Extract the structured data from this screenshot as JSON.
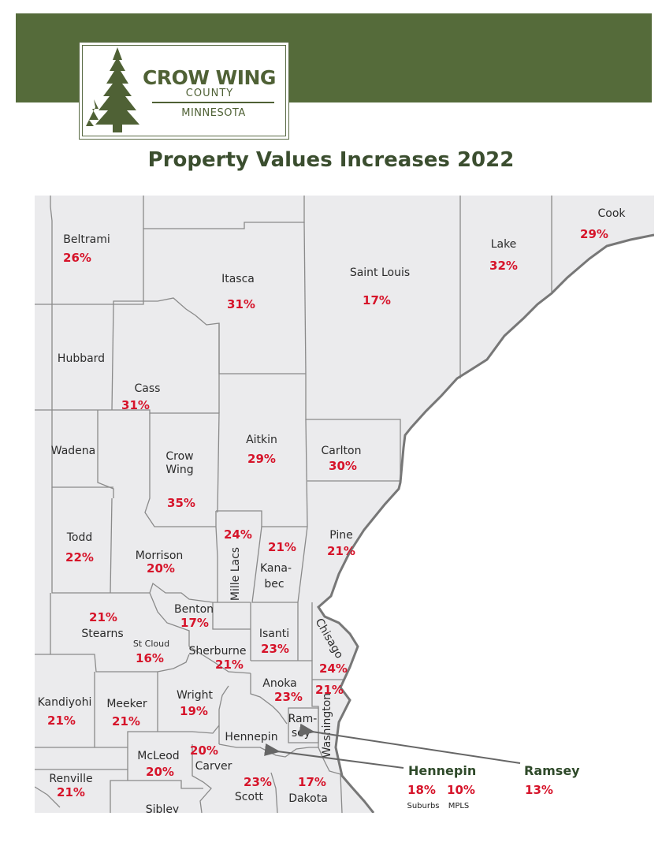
{
  "header": {
    "logo": {
      "line1": "CROW WING",
      "line2": "COUNTY",
      "line3": "MINNESOTA"
    },
    "title": "Property Values Increases 2022"
  },
  "colors": {
    "banner": "#556b3a",
    "map_fill": "#ebebed",
    "water": "#ffffff",
    "border": "#8a8a8a",
    "shore": "#777777",
    "percent": "#d6142a"
  },
  "counties": [
    {
      "id": "beltrami",
      "name": "Beltrami",
      "pct": "26%"
    },
    {
      "id": "itasca",
      "name": "Itasca",
      "pct": "31%"
    },
    {
      "id": "saint-louis",
      "name": "Saint Louis",
      "pct": "17%"
    },
    {
      "id": "lake",
      "name": "Lake",
      "pct": "32%"
    },
    {
      "id": "cook",
      "name": "Cook",
      "pct": "29%"
    },
    {
      "id": "hubbard",
      "name": "Hubbard",
      "pct": ""
    },
    {
      "id": "cass",
      "name": "Cass",
      "pct": "31%"
    },
    {
      "id": "wadena",
      "name": "Wadena",
      "pct": ""
    },
    {
      "id": "crow-wing",
      "name": "Crow Wing",
      "name_lines": [
        "Crow",
        "Wing"
      ],
      "pct": "35%"
    },
    {
      "id": "aitkin",
      "name": "Aitkin",
      "pct": "29%"
    },
    {
      "id": "carlton",
      "name": "Carlton",
      "pct": "30%"
    },
    {
      "id": "todd",
      "name": "Todd",
      "pct": "22%"
    },
    {
      "id": "morrison",
      "name": "Morrison",
      "pct": "20%"
    },
    {
      "id": "mille-lacs",
      "name": "Mille Lacs",
      "pct": "24%"
    },
    {
      "id": "kanabec",
      "name": "Kana-bec",
      "name_lines": [
        "Kana-",
        "bec"
      ],
      "pct": "21%"
    },
    {
      "id": "pine",
      "name": "Pine",
      "pct": "21%"
    },
    {
      "id": "stearns",
      "name": "Stearns",
      "pct": "21%"
    },
    {
      "id": "benton",
      "name": "Benton",
      "pct": "17%"
    },
    {
      "id": "sherburne",
      "name": "Sherburne",
      "pct": "21%"
    },
    {
      "id": "isanti",
      "name": "Isanti",
      "pct": "23%"
    },
    {
      "id": "chisago",
      "name": "Chisago",
      "pct": "24%"
    },
    {
      "id": "anoka",
      "name": "Anoka",
      "pct": "23%"
    },
    {
      "id": "washington",
      "name": "Washington",
      "pct": "21%"
    },
    {
      "id": "kandiyohi",
      "name": "Kandiyohi",
      "pct": "21%"
    },
    {
      "id": "meeker",
      "name": "Meeker",
      "pct": "21%"
    },
    {
      "id": "wright",
      "name": "Wright",
      "pct": "19%"
    },
    {
      "id": "hennepin",
      "name": "Hennepin",
      "pct": ""
    },
    {
      "id": "ramsey",
      "name": "Ram-sey",
      "name_lines": [
        "Ram-",
        "sey"
      ],
      "pct": ""
    },
    {
      "id": "mcleod",
      "name": "McLeod",
      "pct": "20%"
    },
    {
      "id": "carver",
      "name": "Carver",
      "pct": "20%"
    },
    {
      "id": "renville",
      "name": "Renville",
      "pct": "21%"
    },
    {
      "id": "scott",
      "name": "Scott",
      "pct": "23%"
    },
    {
      "id": "dakota",
      "name": "Dakota",
      "pct": "17%"
    },
    {
      "id": "sibley",
      "name": "Sibley",
      "pct": ""
    }
  ],
  "cities": [
    {
      "name": "St Cloud",
      "pct": "16%"
    }
  ],
  "legend": {
    "hennepin": {
      "name": "Hennepin",
      "suburbs_pct": "18%",
      "suburbs_label": "Suburbs",
      "mpls_pct": "10%",
      "mpls_label": "MPLS"
    },
    "ramsey": {
      "name": "Ramsey",
      "pct": "13%"
    }
  }
}
